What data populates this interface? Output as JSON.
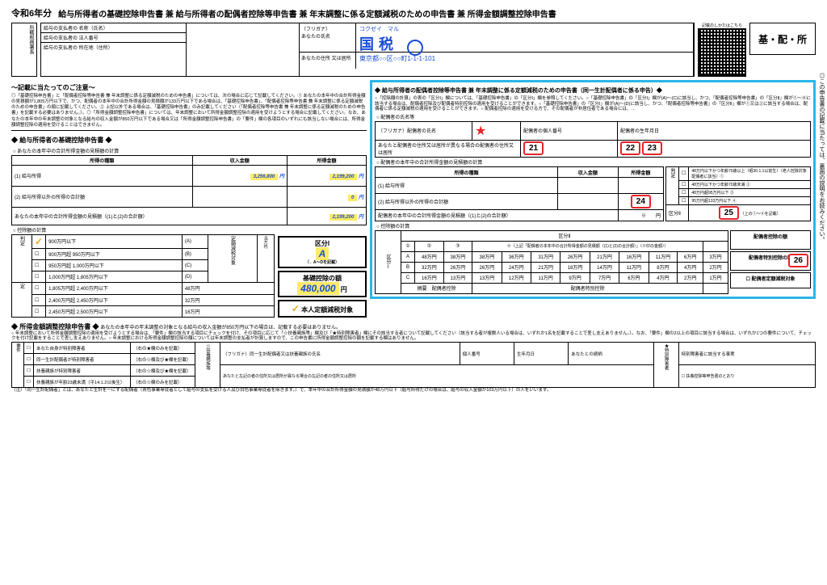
{
  "header": {
    "year": "令和6年分",
    "title": "給与所得者の基礎控除申告書 兼 給与所得者の配偶者控除等申告書 兼 年末調整に係る定額減税のための申告書 兼 所得金額調整控除申告書",
    "badge": "基・配・所",
    "qr_note": "記載のしかたはこちら"
  },
  "taxpayer": {
    "left_stub": "所轄税務署長",
    "rows": [
      "給与の支払者の 名称（氏名）",
      "給与の支払者の 法人番号",
      "給与の支払者の 所在地（住所）"
    ],
    "furigana_label": "（フリガナ）",
    "furigana": "コクゼイ　マル",
    "name_label": "あなたの氏名",
    "name": "国税",
    "addr_label": "あなたの住所 又は居所",
    "addr": "東京都○○区○○町1-1-1-101"
  },
  "notice": {
    "heading": "～記載に当たってのご注意～",
    "body": "◎「基礎控除申告書」と「配偶者控除等申告書 兼 年末調整に係る定額減税のための申告書」については、次の場合に応じて記載してください。① あなたの本年中の合計所得金額の見積額が1,805万円以下で、かつ、配偶者の本年中の合計所得金額の見積額が133万円以下である場合は、「基礎控除申告書」、「配偶者控除等申告書 兼 年末調整に係る定額減税のための申告書」の順に記載してください。② 上記以外である場合は、「基礎控除申告書」のみ記載してください（「配偶者控除等申告書 兼 年末調整に係る定額減税のための申告書」を記載する必要はありません。）。◎「所得金額調整控除申告書」については、年末調整において所得金額調整控除の適用を受けようとする場合に記載してください。なお、あなたの本年中の年末調整の対象となる給与の収入金額が850万円以下である場合又は「所得金額調整控除申告書」の「要件」欄の各項目のいずれにも該当しない場合には、所得金額調整控除の適用を受けることはできません。"
  },
  "basic": {
    "heading": "◆ 給与所得者の基礎控除申告書 ◆",
    "sub1": "○ あなたの本年中の合計所得金額の見積額の計算",
    "cols": [
      "所得の種類",
      "収入金額",
      "所得金額"
    ],
    "row1_label": "(1) 給与所得",
    "income": "3,256,800",
    "shotoku": "2,199,200",
    "row2_label": "(2) 給与所得以外の所得の合計額",
    "other": "0",
    "total_label": "あなたの本年中の合計所得金額の見積額（(1)と(2)の合計額）",
    "total": "2,199,200",
    "sub2": "○ 控除額の計算",
    "brackets": [
      [
        "900万円以下",
        "(A)"
      ],
      [
        "900万円超 950万円以下",
        "(B)"
      ],
      [
        "950万円超 1,000万円以下",
        "(C)"
      ],
      [
        "1,000万円超 1,805万円以下",
        "(D)"
      ],
      [
        "1,805万円超 2,400万円以下",
        ""
      ],
      [
        "2,400万円超 2,450万円以下",
        ""
      ],
      [
        "2,450万円超 2,500万円以下",
        ""
      ]
    ],
    "amounts": [
      "",
      "",
      "",
      "48万円",
      "48万円",
      "32万円",
      "16万円"
    ],
    "kubun_label": "区分Ⅰ",
    "kubun_val": "A",
    "kiso_label": "基礎控除の額",
    "kiso_val": "480,000",
    "teigaku_label": "本人定額減税対象",
    "side_label": "判定",
    "side_label2": "定額減税対象"
  },
  "spouse": {
    "heading": "◆ 給与所得者の配偶者控除等申告書 兼 年末調整に係る定額減税のための申告書（同一生計配偶者に係る申告）◆",
    "intro": "○「控除額の計算」の表の「区分Ⅰ」欄については、「基礎控除申告書」の「区分Ⅰ」欄を参照してください。○「基礎控除申告書」の「区分Ⅰ」欄が(A)～(C)に該当し、かつ、「配偶者控除等申告書」の「区分Ⅱ」欄が①～④に該当する場合は、配偶者控除及び配偶者特別控除の適用を受けることができます。○「基礎控除申告書」の「区分Ⅰ」欄が(A)～(D)に該当し、かつ、「配偶者控除等申告書」の「区分Ⅱ」欄が①又は②に該当する場合は、配偶者に係る定額減税の適用を受けることができます。○ 配偶者控除の適用を受ける方で、その配偶者が非居住者である場合には、…",
    "sec1": "○ 配偶者の氏名等",
    "sec1_cols": [
      "（フリガナ）配偶者の氏名",
      "配偶者の個人番号",
      "配偶者の生年月日",
      "あなたと配偶者の住所又は居所が異なる場合の配偶者の住所又は居所",
      "非居住者である配偶者",
      "生計を一にする事実"
    ],
    "markers1": [
      "21",
      "22",
      "23"
    ],
    "sec2": "○ 配偶者の本年中の合計所得金額の見積額の計算",
    "sec2_cols": [
      "所得の種類",
      "収入金額",
      "所得金額"
    ],
    "sec2_r1": "(1) 給与所得",
    "sec2_r2": "(2) 給与所得以外の所得の合計額",
    "sec2_total": "配偶者の本年中の合計所得金額の見積額（(1)と(2)の合計額）",
    "marker24": "24",
    "judge_rows": [
      "48万円以下かつ年齢70歳以上（昭30.1.1以前生）〈老人控除対象配偶者に該当〉①",
      "48万円以下かつ年齢70歳未満 ②",
      "48万円超95万円以下 ③",
      "95万円超133万円以下 ④"
    ],
    "kubun2_label": "区分Ⅱ",
    "marker25": "25",
    "sec3": "○ 控除額の計算",
    "matrix_header": "区分Ⅱ",
    "matrix_cols": [
      "①",
      "②",
      "③",
      "④（上記「配偶者の本年中の合計所得金額の見積額（(1)と(2)の合計額）」（※印の金額））"
    ],
    "matrix_subcols": [
      "95万円超 100万円以下",
      "100万円超 105万円以下",
      "105万円超 110万円以下",
      "110万円超 115万円以下",
      "115万円超 120万円以下",
      "120万円超 125万円以下",
      "125万円超 130万円以下",
      "130万円超 133万円以下"
    ],
    "matrix_rows": [
      [
        "A",
        "48万円",
        "38万円",
        "38万円",
        "36万円",
        "31万円",
        "26万円",
        "21万円",
        "16万円",
        "11万円",
        "6万円",
        "3万円"
      ],
      [
        "B",
        "32万円",
        "26万円",
        "26万円",
        "24万円",
        "21万円",
        "18万円",
        "14万円",
        "11万円",
        "8万円",
        "4万円",
        "2万円"
      ],
      [
        "C",
        "16万円",
        "13万円",
        "13万円",
        "12万円",
        "11万円",
        "9万円",
        "7万円",
        "6万円",
        "4万円",
        "2万円",
        "1万円"
      ]
    ],
    "matrix_footer_l": "摘要　配偶者控除",
    "matrix_footer_r": "配偶者特別控除",
    "right_boxes": [
      "配偶者控除の額",
      "配偶者特別控除の額",
      "配偶者定額減税対象"
    ],
    "marker26": "26",
    "kubun1_side": "区分Ⅰ"
  },
  "adjust": {
    "heading": "◆ 所得金額調整控除申告書 ◆",
    "sub": "あなたの本年中の年末調整の対象となる給与の収入金額が850万円以下の場合は、記載する必要はありません。",
    "intro": "○ 年末調整において所得金額調整控除の適用を受けようとする場合は、「要件」欄の該当する項目にチェックを付け、その項目に応じて「☆扶養親族等」欄及び「★特別障害者」欄にその該当する者について記載してください（該当する者が複数人いる場合は、いずれか1名を記載することで差し支えありません。）。なお、「要件」欄の2以上の項目に該当する場合は、いずれか1つの要件について、チェックを付け記載をすることで差し支えありません。○ 年末調整における所得金額調整控除の額については年末調整の支払者が計算しますので、この申告書に所得金額調整控除の額を記載する欄はありません。",
    "req_rows": [
      "あなた自身が特別障害者",
      "同一生計配偶者が特別障害者",
      "扶養親族が特別障害者",
      "扶養親族が年齢23歳未満（平14.1.2以後生）"
    ],
    "req_notes": [
      "（右の★欄のみを記載）",
      "（右の☆欄及び★欄を記載）",
      "（右の☆欄及び★欄を記載）",
      "（右の☆欄のみを記載）"
    ],
    "star_label": "☆扶養親族等",
    "star_cols": [
      "（フリガナ）同一生計配偶者又は扶養親族の氏名",
      "個人番号",
      "生年月日",
      "あなたとの続柄",
      "特別障害者に該当する事実"
    ],
    "star2_label": "★特別障害者",
    "footnote": "（注）「同一生計配偶者」とは、あなたと生計を一にする配偶者（青色事業専従者として給与の支払を受ける人及び白色事業専従者を除きます。）で、本年中の合計所得金額の見積額が48万円以下（給与所得だけの場合は、給与の収入金額が103万円以下）の人をいいます。"
  },
  "side_note": "◎この申告書の記載に当たっては、裏面の説明をお読みください。",
  "colors": {
    "blue": "#1a4dd4",
    "cyan": "#2bb6e8",
    "red": "#e8232a",
    "yellow": "#ffe96b",
    "orange": "#e6a817"
  }
}
